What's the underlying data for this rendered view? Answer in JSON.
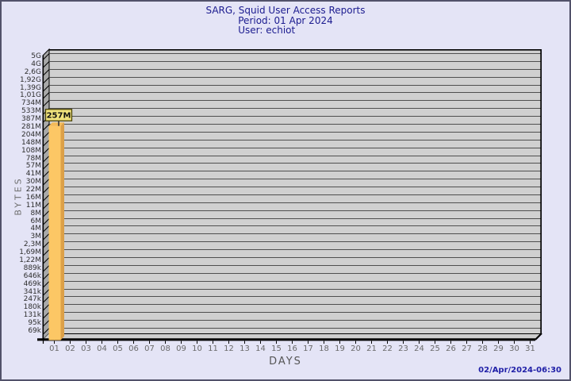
{
  "window": {
    "background": "#E4E4F6",
    "border_color": "#52526A"
  },
  "header": {
    "title": "SARG, Squid User Access Reports",
    "period": "Period: 01 Apr 2024",
    "user": "User: echiot",
    "text_color": "#1B1B8F"
  },
  "footer": {
    "generated": "02/Apr/2024-06:30",
    "text_color": "#2121A8"
  },
  "chart_data": {
    "type": "bar",
    "title": "SARG, Squid User Access Reports",
    "subtitle": [
      "Period: 01 Apr 2024",
      "User: echiot"
    ],
    "xlabel": "DAYS",
    "ylabel": "BYTES",
    "y_scale": "log",
    "grid": true,
    "style": "3d-bar",
    "y_ticks": [
      "5G",
      "4G",
      "2,6G",
      "1,92G",
      "1,39G",
      "1,01G",
      "734M",
      "533M",
      "387M",
      "281M",
      "204M",
      "148M",
      "108M",
      "78M",
      "57M",
      "41M",
      "30M",
      "22M",
      "16M",
      "11M",
      "8M",
      "6M",
      "4M",
      "3M",
      "2,3M",
      "1,69M",
      "1,22M",
      "889k",
      "646k",
      "469k",
      "341k",
      "247k",
      "180k",
      "131k",
      "95k",
      "69k"
    ],
    "ylim_labels": [
      "69k",
      "5G"
    ],
    "x_ticks": [
      "01",
      "02",
      "03",
      "04",
      "05",
      "06",
      "07",
      "08",
      "09",
      "10",
      "11",
      "12",
      "13",
      "14",
      "15",
      "16",
      "17",
      "18",
      "19",
      "20",
      "21",
      "22",
      "23",
      "24",
      "25",
      "26",
      "27",
      "28",
      "29",
      "30",
      "31"
    ],
    "bars": [
      {
        "x": "01",
        "label": "257M",
        "value": 257000000
      }
    ],
    "colors": {
      "plot_bg": "#D0D0D0",
      "grid": "#4F4F4F",
      "wall": "#A8A8A8",
      "floor": "#CDCDCD",
      "frame": "#000000",
      "bar_front": "#FCC765",
      "bar_side": "#DCA048",
      "bar_top": "#F3BA58",
      "value_box_bg": "#F0E27C",
      "value_box_border": "#4A4408",
      "value_text": "#111111",
      "y_tick_label": "#2E2E2E",
      "x_tick_label": "#6A6A6A"
    }
  }
}
